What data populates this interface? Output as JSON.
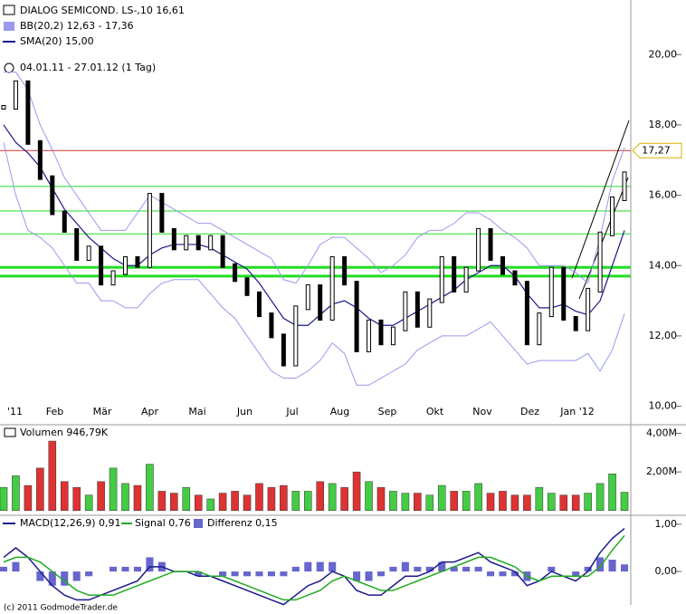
{
  "chart_data": {
    "type": "stock",
    "title": "DIALOG SEMICOND.   LS-,10 16,61",
    "period": "04.01.11 - 27.01.12 (1 Tag)",
    "copyright": "(c) 2011 GodmodeTrader.de",
    "months": [
      "'11",
      "Feb",
      "Mär",
      "Apr",
      "Mai",
      "Jun",
      "Jul",
      "Aug",
      "Sep",
      "Okt",
      "Nov",
      "Dez",
      "Jan '12"
    ],
    "price": {
      "ylim": [
        9.5,
        21.5
      ],
      "yticks": [
        {
          "value": 10,
          "label": "10,00"
        },
        {
          "value": 12,
          "label": "12,00"
        },
        {
          "value": 14,
          "label": "14,00"
        },
        {
          "value": 16,
          "label": "16,00"
        },
        {
          "value": 18,
          "label": "18,00"
        },
        {
          "value": 20,
          "label": "20,00"
        }
      ],
      "series": [
        {
          "name": "BB(20,2) 12,63 - 17,36",
          "color": "#9999ee",
          "upper": [
            19.5,
            19.5,
            19.0,
            18.0,
            17.3,
            16.5,
            16.0,
            15.5,
            15.0,
            15.0,
            15.0,
            15.5,
            16.0,
            15.8,
            15.6,
            15.4,
            15.2,
            15.2,
            15.0,
            14.8,
            14.6,
            14.4,
            14.2,
            13.6,
            13.5,
            14.0,
            14.6,
            14.8,
            14.8,
            14.5,
            14.2,
            13.8,
            14.0,
            14.3,
            14.8,
            15.0,
            15.0,
            15.2,
            15.5,
            15.5,
            15.3,
            15.0,
            14.8,
            14.5,
            14.0,
            14.0,
            14.0,
            13.8,
            13.5,
            14.8,
            16.4,
            17.36
          ],
          "lower": [
            17.5,
            16.0,
            15.0,
            14.8,
            14.5,
            14.0,
            13.5,
            13.5,
            13.0,
            13.0,
            12.8,
            12.8,
            13.2,
            13.5,
            13.6,
            13.6,
            13.6,
            13.2,
            12.8,
            12.5,
            12.0,
            11.5,
            11.0,
            10.8,
            10.8,
            11.0,
            11.3,
            11.8,
            11.5,
            10.6,
            10.6,
            10.8,
            11.0,
            11.2,
            11.6,
            11.8,
            12.0,
            12.0,
            12.0,
            12.2,
            12.4,
            12.0,
            11.6,
            11.2,
            11.3,
            11.3,
            11.3,
            11.3,
            11.5,
            11.0,
            11.6,
            12.63
          ]
        },
        {
          "name": "SMA(20) 15,00",
          "color": "#1a1a8c",
          "values": [
            18.0,
            17.5,
            17.2,
            16.8,
            16.2,
            15.6,
            15.2,
            14.8,
            14.5,
            14.2,
            14.0,
            14.0,
            14.3,
            14.5,
            14.6,
            14.6,
            14.6,
            14.5,
            14.3,
            14.1,
            13.9,
            13.5,
            13.0,
            12.5,
            12.3,
            12.3,
            12.6,
            12.9,
            13.0,
            12.8,
            12.5,
            12.3,
            12.3,
            12.5,
            12.7,
            12.9,
            13.1,
            13.3,
            13.6,
            13.8,
            14.0,
            14.0,
            13.7,
            13.2,
            12.8,
            12.8,
            12.9,
            12.7,
            12.6,
            13.0,
            14.0,
            15.0
          ]
        }
      ],
      "close": [
        18.5,
        19.2,
        17.5,
        16.5,
        15.5,
        15.0,
        14.2,
        14.5,
        13.5,
        13.8,
        14.2,
        14.0,
        16.0,
        15.0,
        14.5,
        14.8,
        14.5,
        14.8,
        14.0,
        13.6,
        13.2,
        12.6,
        12.0,
        11.2,
        12.8,
        13.4,
        12.5,
        14.2,
        13.5,
        11.6,
        12.4,
        11.8,
        12.2,
        13.2,
        12.3,
        13.0,
        14.2,
        13.3,
        13.9,
        15.0,
        14.2,
        13.8,
        13.5,
        11.8,
        12.6,
        13.9,
        12.5,
        12.2,
        13.3,
        14.9,
        15.9,
        16.61
      ],
      "last_level": {
        "value": 17.27,
        "label": "17,27",
        "color": "#cc3333"
      },
      "levels": [
        16.25,
        15.55,
        14.9
      ],
      "thick_levels": [
        13.95,
        13.7
      ],
      "level_color": "#22dd22"
    },
    "volume": {
      "title": "Volumen 946,79K",
      "ylim": [
        -0.2,
        4.4
      ],
      "yticks": [
        {
          "value": 2,
          "label": "2,00M"
        },
        {
          "value": 4,
          "label": "4,00M"
        }
      ],
      "up_color": "#44cc44",
      "down_color": "#dd3333",
      "values": [
        1.2,
        1.8,
        1.3,
        2.2,
        3.6,
        1.5,
        1.2,
        0.8,
        1.5,
        2.2,
        1.4,
        1.3,
        2.4,
        1.0,
        0.9,
        1.2,
        0.8,
        0.6,
        0.9,
        1.0,
        0.8,
        1.4,
        1.2,
        1.3,
        1.0,
        1.0,
        1.5,
        1.4,
        1.2,
        2.0,
        1.5,
        1.2,
        1.0,
        0.9,
        0.9,
        0.8,
        1.3,
        1.0,
        1.0,
        1.4,
        0.9,
        1.0,
        0.8,
        0.8,
        1.2,
        0.9,
        0.8,
        0.8,
        0.9,
        1.4,
        1.9,
        0.94679
      ]
    },
    "macd": {
      "ylim": [
        -0.65,
        1.17
      ],
      "yticks": [
        {
          "value": 0,
          "label": "0,00"
        },
        {
          "value": 1,
          "label": "1,00"
        }
      ],
      "series": [
        {
          "name": "MACD(12,26,9) 0,91",
          "color": "#1a1a8c",
          "values": [
            0.3,
            0.5,
            0.3,
            0.0,
            -0.3,
            -0.5,
            -0.6,
            -0.6,
            -0.5,
            -0.4,
            -0.3,
            -0.2,
            0.1,
            0.1,
            0.0,
            0.0,
            -0.1,
            -0.1,
            -0.2,
            -0.3,
            -0.4,
            -0.5,
            -0.6,
            -0.7,
            -0.5,
            -0.3,
            -0.2,
            0.0,
            -0.1,
            -0.4,
            -0.5,
            -0.5,
            -0.3,
            -0.1,
            -0.1,
            0.0,
            0.2,
            0.2,
            0.3,
            0.4,
            0.2,
            0.1,
            0.0,
            -0.3,
            -0.2,
            0.0,
            -0.1,
            -0.2,
            0.0,
            0.4,
            0.7,
            0.91
          ]
        },
        {
          "name": "Signal 0,76",
          "color": "#22aa22",
          "values": [
            0.2,
            0.3,
            0.3,
            0.2,
            0.0,
            -0.2,
            -0.4,
            -0.5,
            -0.5,
            -0.5,
            -0.4,
            -0.3,
            -0.2,
            -0.1,
            0.0,
            0.0,
            0.0,
            -0.1,
            -0.1,
            -0.2,
            -0.3,
            -0.4,
            -0.5,
            -0.6,
            -0.6,
            -0.5,
            -0.4,
            -0.2,
            -0.1,
            -0.2,
            -0.3,
            -0.4,
            -0.4,
            -0.3,
            -0.2,
            -0.1,
            0.0,
            0.1,
            0.2,
            0.3,
            0.3,
            0.2,
            0.1,
            -0.1,
            -0.2,
            -0.1,
            -0.1,
            -0.1,
            -0.1,
            0.1,
            0.45,
            0.76
          ]
        },
        {
          "name": "Differenz 0,15",
          "color": "#6666cc",
          "values": [
            0.1,
            0.2,
            0.0,
            -0.2,
            -0.3,
            -0.3,
            -0.2,
            -0.1,
            0.0,
            0.1,
            0.1,
            0.1,
            0.3,
            0.2,
            0.0,
            0.0,
            -0.1,
            0.0,
            -0.1,
            -0.1,
            -0.1,
            -0.1,
            -0.1,
            -0.1,
            0.1,
            0.2,
            0.2,
            0.2,
            0.0,
            -0.2,
            -0.2,
            -0.1,
            0.1,
            0.2,
            0.1,
            0.1,
            0.2,
            0.1,
            0.1,
            0.1,
            -0.1,
            -0.1,
            -0.1,
            -0.2,
            0.0,
            0.1,
            0.0,
            -0.1,
            0.1,
            0.3,
            0.25,
            0.15
          ]
        }
      ]
    }
  }
}
